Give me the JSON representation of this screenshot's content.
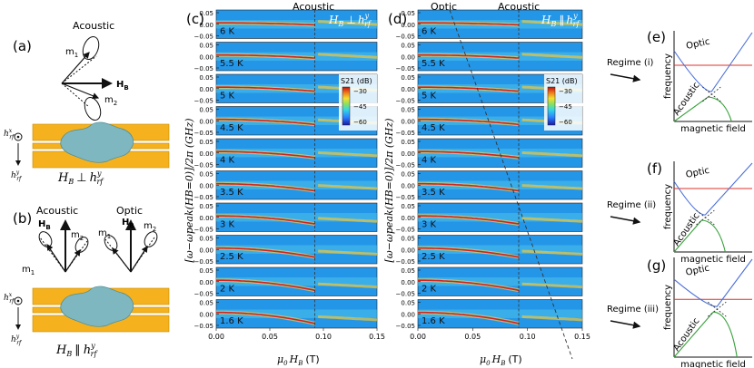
{
  "panel_a": {
    "label": "(a)",
    "acoustic": "Acoustic",
    "m1": "m",
    "m1_sub": "1",
    "m2": "m",
    "m2_sub": "2",
    "hb": "H",
    "hb_sub": "B",
    "hrf_x": "h",
    "hrf_x_sup": "x",
    "hrf_x_sub": "rf",
    "hrf_y": "h",
    "hrf_y_sup": "y",
    "hrf_y_sub": "rf",
    "caption": "H",
    "caption_sub": "B",
    "caption_rel": "⊥",
    "caption_h": "h",
    "caption_h_sup": "y",
    "caption_h_sub": "rf"
  },
  "panel_b": {
    "label": "(b)",
    "acoustic": "Acoustic",
    "optic": "Optic",
    "hb": "H",
    "hb_sub": "B",
    "m1": "m",
    "m1_sub": "1",
    "m2": "m",
    "m2_sub": "2",
    "hrf_x": "h",
    "hrf_x_sup": "x",
    "hrf_x_sub": "rf",
    "hrf_y": "h",
    "hrf_y_sup": "y",
    "hrf_y_sub": "rf",
    "caption": "H",
    "caption_sub": "B",
    "caption_rel": "∥",
    "caption_h": "h",
    "caption_h_sup": "y",
    "caption_h_sub": "rf"
  },
  "panel_c": {
    "label": "(c)",
    "top_label": "Acoustic",
    "inset": "H",
    "inset_sub": "B",
    "inset_rel": "⊥",
    "inset_h": "h",
    "inset_h_sup": "y",
    "inset_h_sub": "rf"
  },
  "panel_d": {
    "label": "(d)",
    "top_label_optic": "Optic",
    "top_label_acoustic": "Acoustic",
    "inset": "H",
    "inset_sub": "B",
    "inset_rel": "∥",
    "inset_h": "h",
    "inset_h_sup": "y",
    "inset_h_sub": "rf"
  },
  "heatmaps": {
    "temperatures": [
      "6 K",
      "5.5 K",
      "5 K",
      "4.5 K",
      "4 K",
      "3.5 K",
      "3 K",
      "2.5 K",
      "2 K",
      "1.6 K"
    ],
    "y_ticks": [
      "0.05",
      "0.00",
      "−0.05"
    ],
    "x_ticks": [
      "0.00",
      "0.05",
      "0.10",
      "0.15"
    ],
    "x_label": "μ",
    "x_label_sub": "0",
    "x_label_h": "H",
    "x_label_h_sub": "B",
    "x_label_unit": "(T)",
    "y_label": "[ω−ωpeak(HB=0)]/2π (GHz)",
    "colorbar_title": "S",
    "colorbar_sub": "21",
    "colorbar_unit": "(dB)",
    "colorbar_ticks": [
      "−30",
      "−45",
      "−60"
    ],
    "dashed_field": 0.092
  },
  "chart_data": [
    {
      "type": "heatmap",
      "panel": "c",
      "title": "Acoustic, H_B ⊥ h_rf^y",
      "xlabel": "μ0 HB (T)",
      "ylabel": "[ω−ωpeak(HB=0)]/2π (GHz)",
      "xlim": [
        0.0,
        0.15
      ],
      "ylim": [
        -0.05,
        0.05
      ],
      "colorbar": {
        "label": "S21 (dB)",
        "range": [
          -60,
          -30
        ]
      },
      "temperatures": [
        "6 K",
        "5.5 K",
        "5 K",
        "4.5 K",
        "4 K",
        "3.5 K",
        "3 K",
        "2.5 K",
        "2 K",
        "1.6 K"
      ],
      "mode_shift_at_0.09T_GHz": [
        -0.01,
        -0.012,
        -0.015,
        -0.02,
        -0.025,
        -0.03,
        -0.035,
        -0.04,
        -0.045,
        -0.045
      ]
    },
    {
      "type": "heatmap",
      "panel": "d",
      "title": "Optic / Acoustic, H_B ∥ h_rf^y",
      "xlabel": "μ0 HB (T)",
      "ylabel": "[ω−ωpeak(HB=0)]/2π (GHz)",
      "xlim": [
        0.0,
        0.15
      ],
      "ylim": [
        -0.05,
        0.05
      ],
      "colorbar": {
        "label": "S21 (dB)",
        "range": [
          -60,
          -30
        ]
      },
      "temperatures": [
        "6 K",
        "5.5 K",
        "5 K",
        "4.5 K",
        "4 K",
        "3.5 K",
        "3 K",
        "2.5 K",
        "2 K",
        "1.6 K"
      ]
    }
  ],
  "regimes": [
    {
      "label": "(e)",
      "regime": "Regime (i)",
      "optic": "Optic",
      "acoustic": "Acoustic",
      "ylabel": "frequency",
      "xlabel": "magnetic field"
    },
    {
      "label": "(f)",
      "regime": "Regime (ii)",
      "optic": "Optic",
      "acoustic": "Acoustic",
      "ylabel": "frequency",
      "xlabel": "magnetic field"
    },
    {
      "label": "(g)",
      "regime": "Regime (iii)",
      "optic": "Optic",
      "acoustic": "Acoustic",
      "ylabel": "frequency",
      "xlabel": "magnetic field"
    }
  ],
  "colors": {
    "bar": "#f5b21e",
    "flake": "#7fb7c0",
    "optic_line": "#4a6fd8",
    "acoustic_line": "#36a03a",
    "red_line": "#e0302a",
    "heat_bg": "#1f8fe0"
  }
}
